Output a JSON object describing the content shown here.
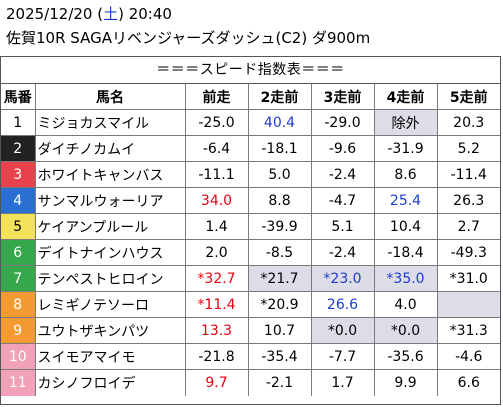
{
  "header": {
    "date": "2025/12/20 (",
    "weekday": "土",
    "time_suffix": ") 20:40",
    "race": "佐賀10R SAGAリベンジャーズダッシュ(C2) ダ900m"
  },
  "table_title": "＝＝＝スピード指数表＝＝＝",
  "columns": [
    "馬番",
    "馬名",
    "前走",
    "2走前",
    "3走前",
    "4走前",
    "5走前"
  ],
  "colors": {
    "frame_1": "#ffffff",
    "frame_2": "#222222",
    "frame_3": "#e8434c",
    "frame_4": "#2a6fd1",
    "frame_5": "#f2e15a",
    "frame_6": "#36a74a",
    "frame_7": "#f39a32",
    "frame_8": "#f2a2b8",
    "red_value": "#e60012",
    "blue_value": "#1f3ccf",
    "gray_cell": "#dcdde6"
  },
  "rows": [
    {
      "no": "1",
      "frame": 1,
      "name": "ミジョカスマイル",
      "vals": [
        {
          "t": "-25.0"
        },
        {
          "t": "40.4",
          "c": "blue",
          "b": true
        },
        {
          "t": "-29.0"
        },
        {
          "t": "除外",
          "g": true
        },
        {
          "t": "20.3"
        }
      ]
    },
    {
      "no": "2",
      "frame": 2,
      "name": "ダイチノカムイ",
      "vals": [
        {
          "t": "-6.4"
        },
        {
          "t": "-18.1"
        },
        {
          "t": "-9.6"
        },
        {
          "t": "-31.9"
        },
        {
          "t": "5.2"
        }
      ]
    },
    {
      "no": "3",
      "frame": 3,
      "name": "ホワイトキャンバス",
      "vals": [
        {
          "t": "-11.1"
        },
        {
          "t": "5.0"
        },
        {
          "t": "-2.4"
        },
        {
          "t": "8.6"
        },
        {
          "t": "-11.4"
        }
      ]
    },
    {
      "no": "4",
      "frame": 4,
      "name": "サンマルウォーリア",
      "vals": [
        {
          "t": "34.0",
          "c": "red",
          "b": true
        },
        {
          "t": "8.8"
        },
        {
          "t": "-4.7"
        },
        {
          "t": "25.4",
          "c": "blue"
        },
        {
          "t": "26.3"
        }
      ]
    },
    {
      "no": "5",
      "frame": 5,
      "name": "ケイアンプルール",
      "vals": [
        {
          "t": "1.4"
        },
        {
          "t": "-39.9"
        },
        {
          "t": "5.1"
        },
        {
          "t": "10.4"
        },
        {
          "t": "2.7"
        }
      ]
    },
    {
      "no": "6",
      "frame": 6,
      "name": "デイトナインハウス",
      "vals": [
        {
          "t": "2.0"
        },
        {
          "t": "-8.5"
        },
        {
          "t": "-2.4"
        },
        {
          "t": "-18.4"
        },
        {
          "t": "-49.3"
        }
      ]
    },
    {
      "no": "7",
      "frame": 6,
      "name": "テンペストヒロイン",
      "vals": [
        {
          "t": "*32.7",
          "c": "red"
        },
        {
          "t": "*21.7",
          "g": true
        },
        {
          "t": "*23.0",
          "c": "blue",
          "g": true
        },
        {
          "t": "*35.0",
          "c": "blue",
          "g": true
        },
        {
          "t": "*31.0"
        }
      ]
    },
    {
      "no": "8",
      "frame": 7,
      "name": "レミギノテソーロ",
      "vals": [
        {
          "t": "*11.4",
          "c": "red"
        },
        {
          "t": "*20.9"
        },
        {
          "t": "26.6",
          "c": "blue"
        },
        {
          "t": "4.0"
        },
        {
          "t": "",
          "g": true
        }
      ]
    },
    {
      "no": "9",
      "frame": 7,
      "name": "ユウトザキンパツ",
      "vals": [
        {
          "t": "13.3",
          "c": "red"
        },
        {
          "t": "10.7"
        },
        {
          "t": "*0.0",
          "g": true
        },
        {
          "t": "*0.0",
          "g": true
        },
        {
          "t": "*31.3"
        }
      ]
    },
    {
      "no": "10",
      "frame": 8,
      "name": "スイモアマイモ",
      "vals": [
        {
          "t": "-21.8"
        },
        {
          "t": "-35.4"
        },
        {
          "t": "-7.7"
        },
        {
          "t": "-35.6"
        },
        {
          "t": "-4.6"
        }
      ]
    },
    {
      "no": "11",
      "frame": 8,
      "name": "カシノフロイデ",
      "vals": [
        {
          "t": "9.7",
          "c": "red"
        },
        {
          "t": "-2.1"
        },
        {
          "t": "1.7"
        },
        {
          "t": "9.9"
        },
        {
          "t": "6.6"
        }
      ]
    }
  ]
}
